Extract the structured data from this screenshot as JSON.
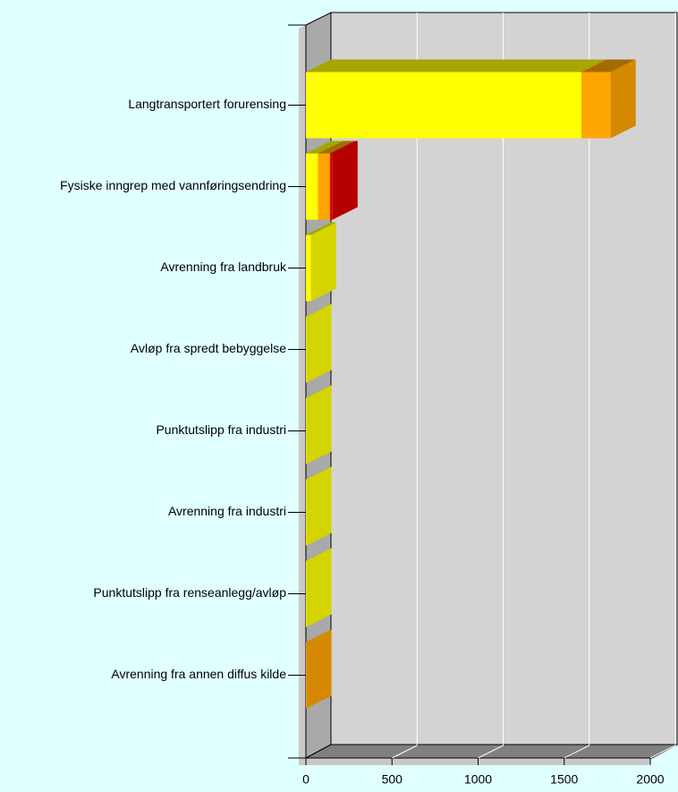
{
  "chart_data": {
    "type": "bar3d_horizontal_stacked",
    "categories": [
      "Langtransportert forurensing",
      "Fysiske inngrep med vannføringsendring",
      "Avrenning fra landbruk",
      "Avløp fra spredt bebyggelse",
      "Punktutslipp fra industri",
      "Avrenning fra industri",
      "Punktutslipp fra renseanlegg/avløp",
      "Avrenning fra annen diffus kilde"
    ],
    "series": [
      {
        "color": "#ffff00",
        "values": [
          1600,
          70,
          30,
          3,
          3,
          3,
          3,
          0
        ]
      },
      {
        "color": "#ffa500",
        "values": [
          170,
          70,
          0,
          0,
          0,
          0,
          0,
          3
        ]
      },
      {
        "color": "#dd0000",
        "values": [
          0,
          15,
          0,
          0,
          0,
          0,
          0,
          0
        ]
      }
    ],
    "xlim": [
      0,
      2000
    ],
    "xticks": [
      0,
      500,
      1000,
      1500,
      2000
    ],
    "grid": true
  }
}
